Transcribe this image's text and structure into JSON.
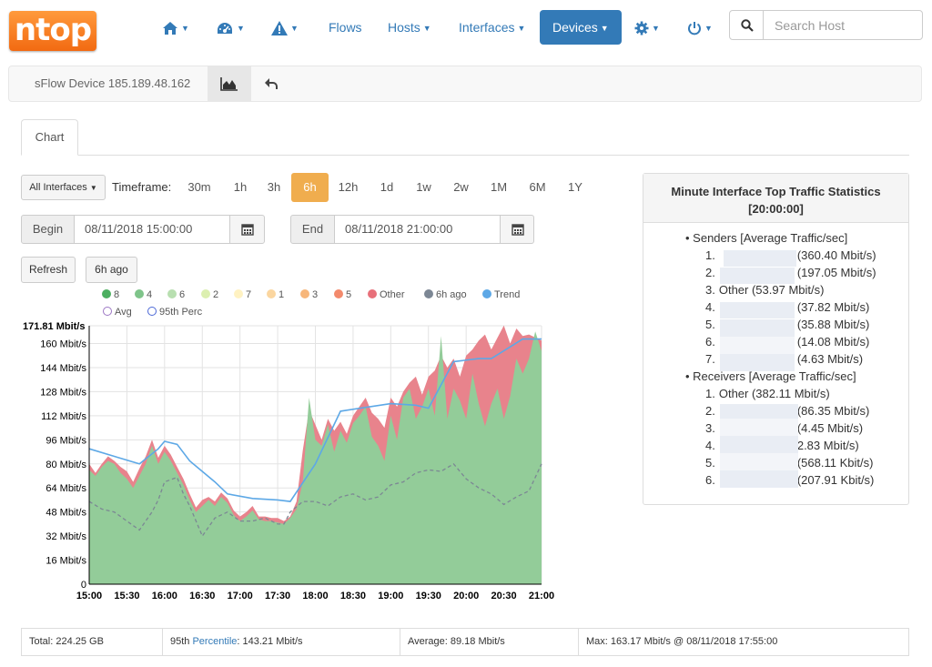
{
  "brand": {
    "logo_text": "ntop"
  },
  "nav": {
    "home_icon": "home-icon",
    "dashboard_icon": "dashboard-icon",
    "alerts_icon": "alert-icon",
    "flows": "Flows",
    "hosts": "Hosts",
    "interfaces": "Interfaces",
    "devices": "Devices",
    "settings_icon": "gear-icon",
    "power_icon": "power-icon",
    "search_placeholder": "Search Host"
  },
  "subbar": {
    "title": "sFlow Device 185.189.48.162"
  },
  "tabs": {
    "chart": "Chart"
  },
  "controls": {
    "interfaces_select": "All Interfaces",
    "timeframe_label": "Timeframe:",
    "timeframes": [
      "30m",
      "1h",
      "3h",
      "6h",
      "12h",
      "1d",
      "1w",
      "2w",
      "1M",
      "6M",
      "1Y"
    ],
    "active_timeframe": "6h",
    "begin_label": "Begin",
    "begin_value": "08/11/2018 15:00:00",
    "end_label": "End",
    "end_value": "08/11/2018 21:00:00",
    "refresh": "Refresh",
    "ago": "6h ago"
  },
  "legend": [
    {
      "label": "8",
      "color": "#4caf60",
      "shape": "dot"
    },
    {
      "label": "4",
      "color": "#7fc48a",
      "shape": "dot"
    },
    {
      "label": "6",
      "color": "#b8dfb0",
      "shape": "dot"
    },
    {
      "label": "2",
      "color": "#dcefb0",
      "shape": "dot"
    },
    {
      "label": "7",
      "color": "#fff2c2",
      "shape": "dot"
    },
    {
      "label": "1",
      "color": "#fbd6a0",
      "shape": "dot"
    },
    {
      "label": "3",
      "color": "#f7b67a",
      "shape": "dot"
    },
    {
      "label": "5",
      "color": "#f38a6c",
      "shape": "dot"
    },
    {
      "label": "Other",
      "color": "#e8707a",
      "shape": "dot"
    },
    {
      "label": "6h ago",
      "color": "#7c8794",
      "shape": "dot"
    },
    {
      "label": "Trend",
      "color": "#5da8e6",
      "shape": "dot"
    },
    {
      "label": "Avg",
      "color": "#9c76c4",
      "shape": "ring"
    },
    {
      "label": "95th Perc",
      "color": "#4b68d6",
      "shape": "ring"
    }
  ],
  "chart_data": {
    "type": "area",
    "ymax_label": "171.81 Mbit/s",
    "ylim": [
      0,
      171.81
    ],
    "yticks": [
      0,
      16,
      32,
      48,
      64,
      80,
      96,
      112,
      128,
      144,
      160
    ],
    "ytick_labels": [
      "0",
      "16 Mbit/s",
      "32 Mbit/s",
      "48 Mbit/s",
      "64 Mbit/s",
      "80 Mbit/s",
      "96 Mbit/s",
      "112 Mbit/s",
      "128 Mbit/s",
      "144 Mbit/s",
      "160 Mbit/s"
    ],
    "xlim": [
      0,
      360
    ],
    "xticks": [
      0,
      30,
      60,
      90,
      120,
      150,
      180,
      210,
      240,
      270,
      300,
      330,
      360
    ],
    "xtick_labels": [
      "15:00",
      "15:30",
      "16:00",
      "16:30",
      "17:00",
      "17:30",
      "18:00",
      "18:30",
      "19:00",
      "19:30",
      "20:00",
      "20:30",
      "21:00"
    ],
    "series": [
      {
        "name": "Other",
        "color": "#e8838c",
        "kind": "area",
        "x": [
          0,
          5,
          10,
          15,
          20,
          25,
          30,
          35,
          40,
          45,
          50,
          55,
          60,
          65,
          70,
          75,
          80,
          85,
          90,
          95,
          100,
          105,
          110,
          115,
          120,
          125,
          130,
          135,
          140,
          145,
          150,
          155,
          160,
          165,
          170,
          175,
          180,
          185,
          190,
          195,
          200,
          205,
          210,
          215,
          220,
          225,
          230,
          235,
          240,
          245,
          250,
          255,
          260,
          265,
          270,
          275,
          280,
          285,
          290,
          295,
          300,
          305,
          310,
          315,
          320,
          325,
          330,
          335,
          340,
          345,
          350,
          355,
          360
        ],
        "y": [
          80,
          74,
          80,
          85,
          82,
          78,
          75,
          68,
          77,
          85,
          96,
          84,
          92,
          86,
          78,
          70,
          60,
          51,
          56,
          58,
          55,
          61,
          57,
          49,
          45,
          48,
          52,
          45,
          45,
          44,
          44,
          42,
          45,
          55,
          89,
          116,
          106,
          96,
          110,
          102,
          108,
          100,
          112,
          118,
          124,
          114,
          110,
          104,
          124,
          118,
          128,
          134,
          138,
          126,
          138,
          142,
          152,
          144,
          150,
          138,
          152,
          156,
          162,
          166,
          156,
          164,
          172,
          160,
          170,
          165,
          166,
          164,
          162
        ]
      },
      {
        "name": "8",
        "color": "#93cc99",
        "kind": "area",
        "x": [
          0,
          5,
          10,
          15,
          20,
          25,
          30,
          35,
          40,
          45,
          50,
          55,
          60,
          65,
          70,
          75,
          80,
          85,
          90,
          95,
          100,
          105,
          110,
          115,
          120,
          125,
          130,
          135,
          140,
          145,
          150,
          155,
          160,
          165,
          170,
          175,
          180,
          185,
          190,
          195,
          200,
          205,
          210,
          215,
          220,
          225,
          230,
          235,
          240,
          245,
          250,
          255,
          260,
          265,
          270,
          275,
          280,
          285,
          290,
          295,
          300,
          305,
          310,
          315,
          320,
          325,
          330,
          335,
          340,
          345,
          350,
          355,
          360
        ],
        "y": [
          76,
          72,
          78,
          82,
          80,
          74,
          70,
          64,
          72,
          80,
          92,
          80,
          88,
          82,
          74,
          66,
          56,
          48,
          52,
          56,
          52,
          58,
          54,
          46,
          42,
          45,
          49,
          43,
          42,
          42,
          41,
          40,
          44,
          50,
          68,
          124,
          96,
          92,
          106,
          88,
          102,
          94,
          107,
          112,
          118,
          98,
          92,
          82,
          112,
          96,
          124,
          130,
          110,
          118,
          130,
          112,
          165,
          110,
          130,
          122,
          110,
          140,
          120,
          105,
          120,
          130,
          110,
          125,
          150,
          140,
          150,
          168,
          155
        ]
      },
      {
        "name": "Trend",
        "color": "#5da8e6",
        "kind": "line",
        "x": [
          0,
          20,
          40,
          55,
          60,
          70,
          80,
          100,
          110,
          130,
          150,
          160,
          180,
          200,
          240,
          260,
          270,
          290,
          310,
          320,
          345,
          360
        ],
        "y": [
          90,
          85,
          80,
          90,
          95,
          93,
          82,
          68,
          60,
          57,
          56,
          55,
          80,
          115,
          120,
          119,
          117,
          148,
          150,
          150,
          163,
          163
        ]
      },
      {
        "name": "6h ago",
        "color": "#7c8794",
        "kind": "dashed",
        "x": [
          0,
          10,
          20,
          30,
          40,
          50,
          55,
          60,
          70,
          75,
          80,
          90,
          100,
          110,
          120,
          130,
          140,
          150,
          155,
          160,
          170,
          180,
          190,
          200,
          210,
          220,
          230,
          240,
          250,
          260,
          270,
          280,
          290,
          300,
          310,
          320,
          330,
          340,
          350,
          360
        ],
        "y": [
          55,
          50,
          48,
          42,
          36,
          48,
          56,
          68,
          71,
          60,
          52,
          32,
          44,
          48,
          42,
          42,
          44,
          40,
          40,
          48,
          55,
          55,
          52,
          58,
          60,
          56,
          58,
          66,
          68,
          74,
          76,
          75,
          80,
          70,
          64,
          60,
          53,
          58,
          62,
          80
        ]
      }
    ]
  },
  "stats": {
    "title_line1": "Minute Interface Top Traffic Statistics",
    "title_line2": "[20:00:00]",
    "senders_header": "Senders [Average Traffic/sec]",
    "senders": [
      {
        "num": "1.",
        "value": "(360.40 Mbit/s)"
      },
      {
        "num": "2.",
        "value": "(197.05 Mbit/s)"
      },
      {
        "num": "3.",
        "value": "Other (53.97 Mbit/s)"
      },
      {
        "num": "4.",
        "value": "(37.82 Mbit/s)"
      },
      {
        "num": "5.",
        "value": "(35.88 Mbit/s)"
      },
      {
        "num": "6.",
        "value": "(14.08 Mbit/s)"
      },
      {
        "num": "7.",
        "value": "(4.63 Mbit/s)"
      }
    ],
    "receivers_header": "Receivers [Average Traffic/sec]",
    "receivers": [
      {
        "num": "1.",
        "value": "Other (382.11 Mbit/s)"
      },
      {
        "num": "2.",
        "value": "(86.35 Mbit/s)"
      },
      {
        "num": "3.",
        "value": "(4.45 Mbit/s)"
      },
      {
        "num": "4.",
        "value": "2.83 Mbit/s)"
      },
      {
        "num": "5.",
        "value": "(568.11 Kbit/s)"
      },
      {
        "num": "6.",
        "value": "(207.91 Kbit/s)"
      }
    ]
  },
  "footer": {
    "total": "Total: 224.25 GB",
    "perc_prefix": "95th ",
    "perc_link": "Percentile",
    "perc_value": ": 143.21 Mbit/s",
    "average": "Average: 89.18 Mbit/s",
    "max": "Max: 163.17 Mbit/s @ 08/11/2018 17:55:00"
  }
}
